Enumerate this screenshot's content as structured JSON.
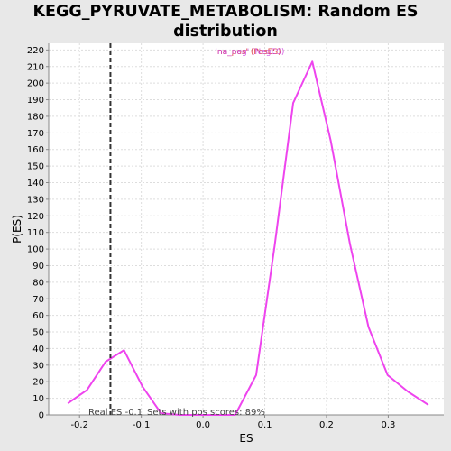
{
  "chart_data": {
    "type": "line",
    "title_line1": "KEGG_PYRUVATE_METABOLISM: Random ES",
    "title_line2": "distribution",
    "xlabel": "ES",
    "ylabel": "P(ES)",
    "xlim": [
      -0.25,
      0.39
    ],
    "ylim": [
      0,
      224
    ],
    "x_ticks": [
      -0.2,
      -0.1,
      0.0,
      0.1,
      0.2,
      0.3
    ],
    "x_tick_labels": [
      "-0.2",
      "-0.1",
      "0.0",
      "0.1",
      "0.2",
      "0.3"
    ],
    "y_ticks": [
      0,
      10,
      20,
      30,
      40,
      50,
      60,
      70,
      80,
      90,
      100,
      110,
      120,
      130,
      140,
      150,
      160,
      170,
      180,
      190,
      200,
      210,
      220
    ],
    "grid": true,
    "series": [
      {
        "name": "'na_neg' (NegES)",
        "color": "#ee44ee",
        "x": [
          -0.219,
          -0.188,
          -0.158,
          -0.128,
          -0.098,
          -0.068,
          -0.038,
          -0.008,
          0.022,
          0.052,
          0.086,
          0.116,
          0.146,
          0.177,
          0.207,
          0.238,
          0.268,
          0.299,
          0.332,
          0.365
        ],
        "y": [
          7,
          15,
          32,
          39,
          17,
          1,
          0,
          0,
          0,
          0,
          24,
          102,
          188,
          213,
          165,
          103,
          53,
          24,
          14,
          6
        ]
      }
    ],
    "legend": {
      "position": "top-center",
      "entries": [
        {
          "label": "'na_pos' (PosES)",
          "color": "#dd2222"
        },
        {
          "label": "'na_neg' (NegES)",
          "color": "#cc44dd"
        }
      ]
    },
    "vline": {
      "x": -0.15,
      "style": "dashed",
      "color": "#333333"
    },
    "annotations": {
      "real_es": "Real ES -0.1",
      "pos_scores": "Sets with pos scores: 89%"
    }
  }
}
